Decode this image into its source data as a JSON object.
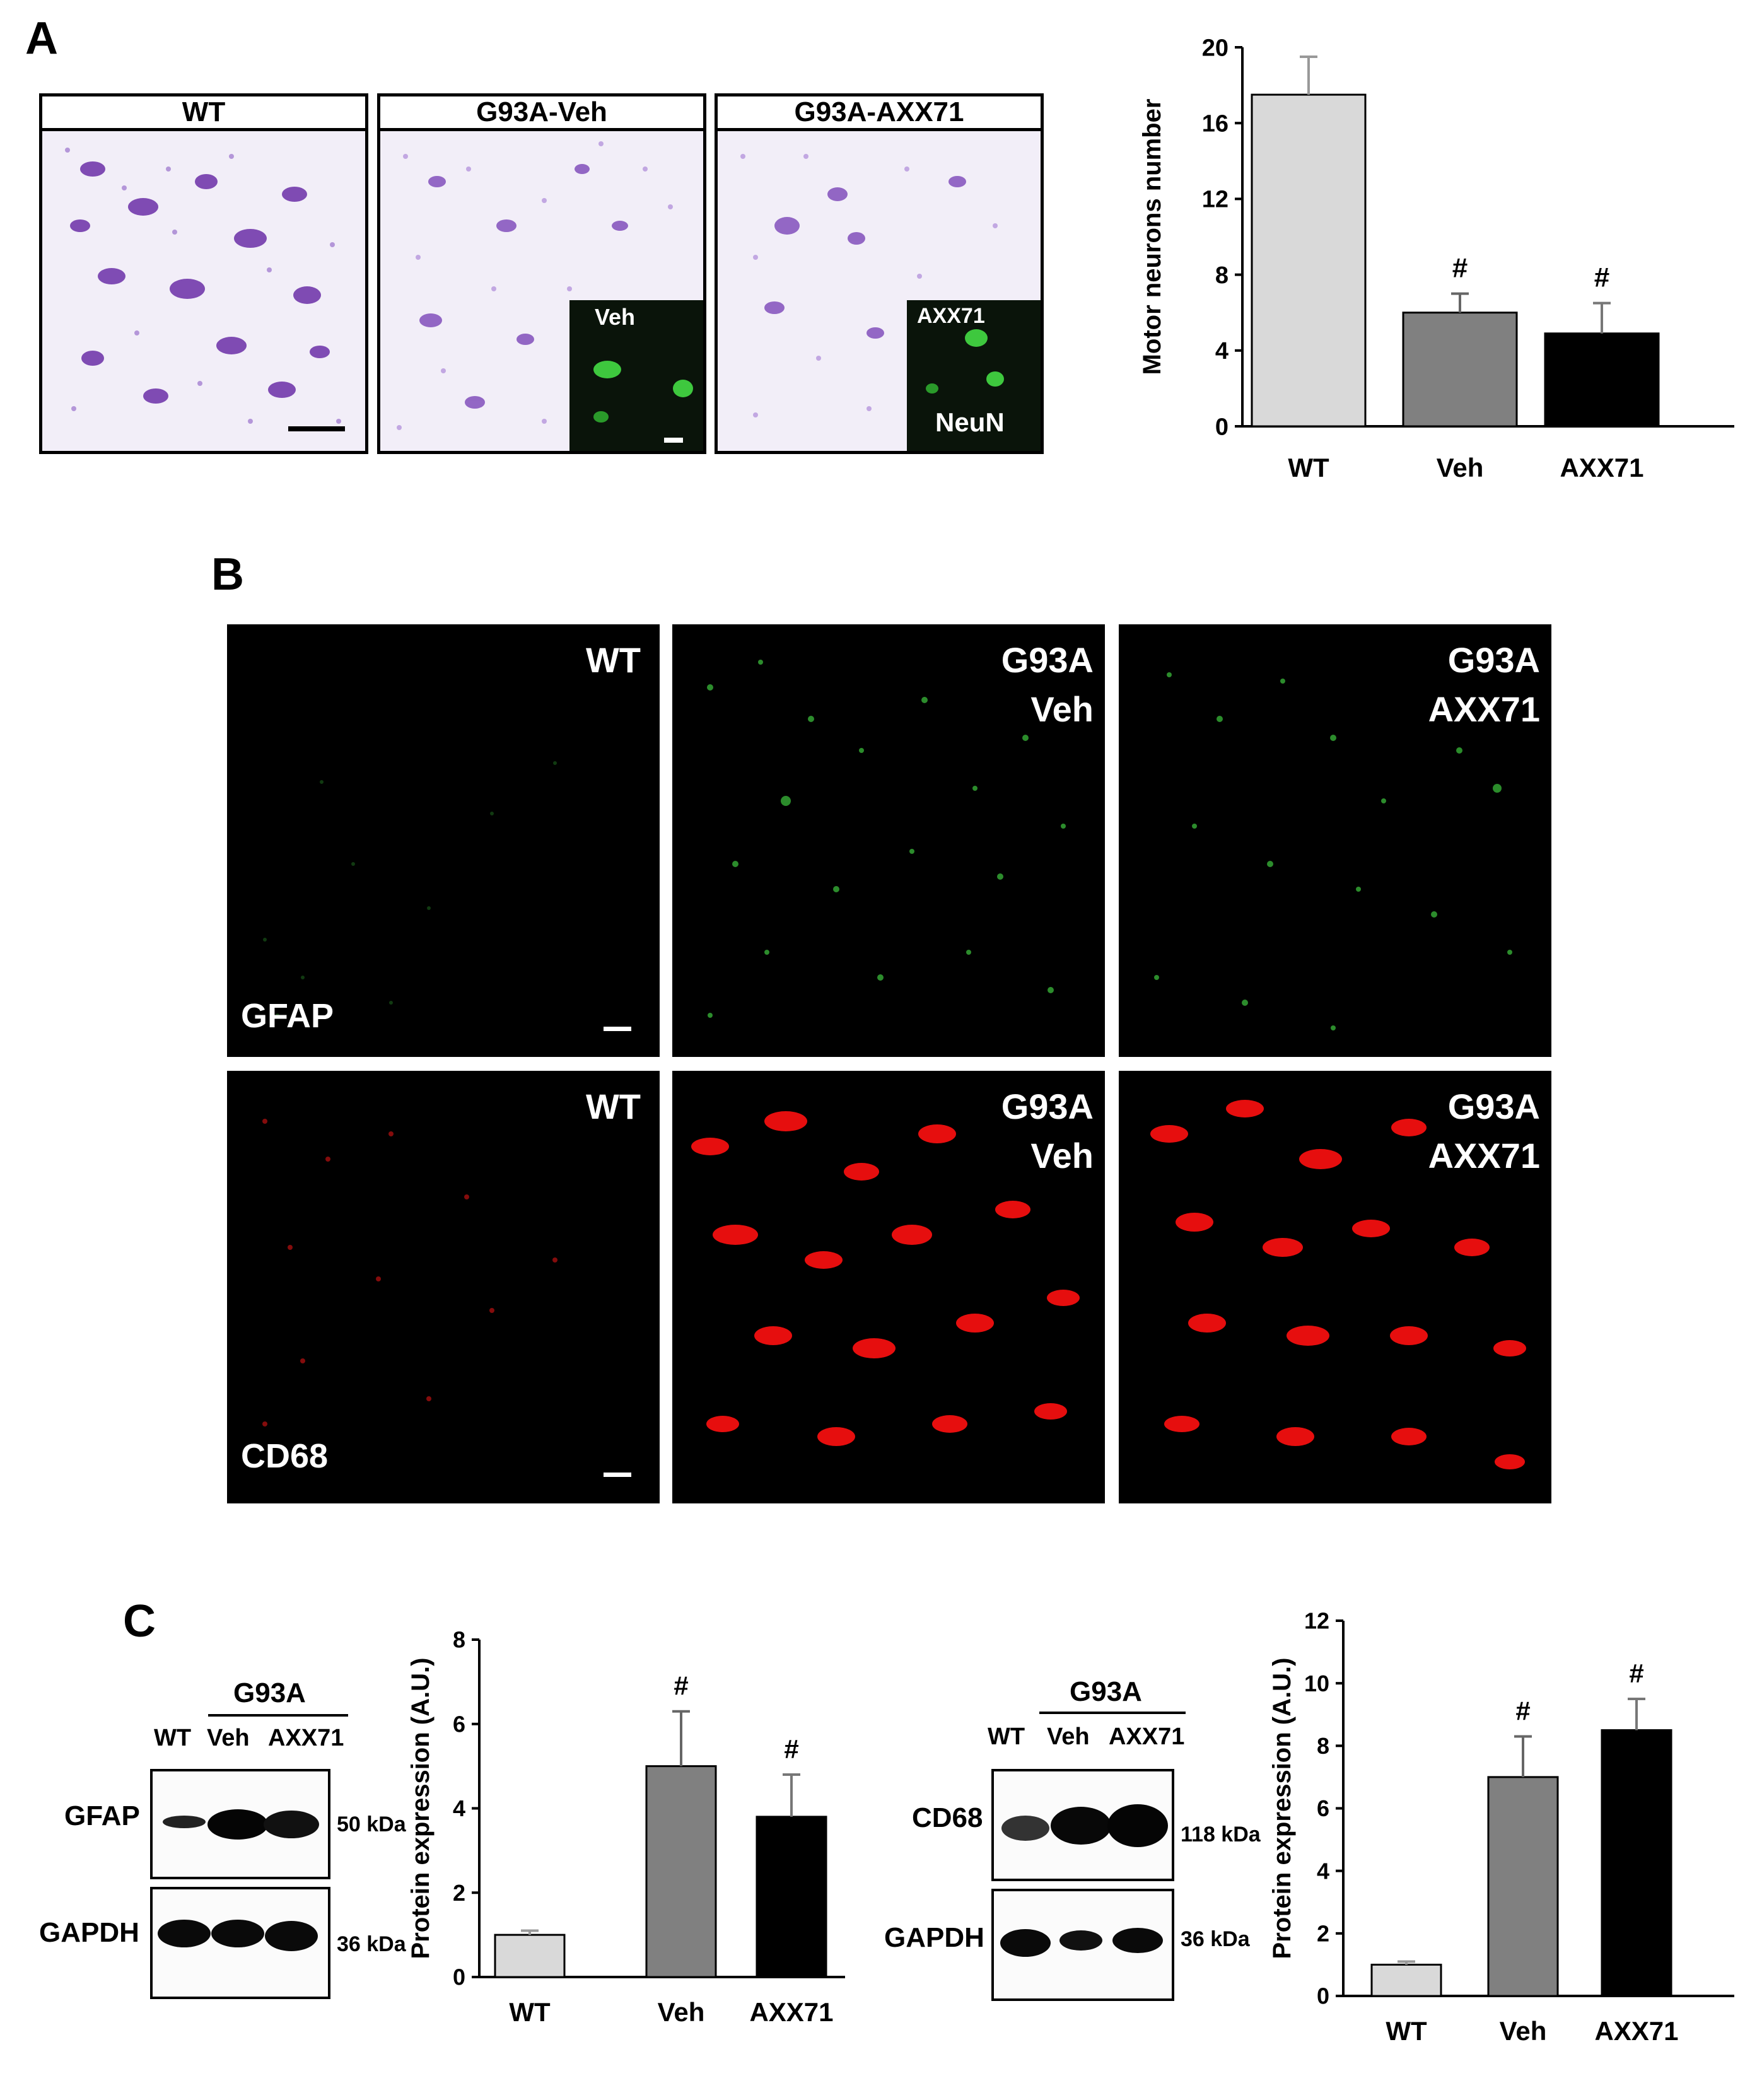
{
  "panels": {
    "a": "A",
    "b": "B",
    "c": "C"
  },
  "panel_a": {
    "images": [
      {
        "title": "WT"
      },
      {
        "title": "G93A-Veh",
        "inset_label": "Veh"
      },
      {
        "title": "G93A-AXX71",
        "inset_label": "AXX71",
        "marker": "NeuN"
      }
    ]
  },
  "panel_b": {
    "gfap_marker": "GFAP",
    "cd68_marker": "CD68",
    "labels": {
      "wt": "WT",
      "veh_l1": "G93A",
      "veh_l2": "Veh",
      "axx_l1": "G93A",
      "axx_l2": "AXX71"
    }
  },
  "panel_c": {
    "gfap_blot": {
      "group_label": "G93A",
      "lanes": [
        "WT",
        "Veh",
        "AXX71"
      ],
      "target": "GFAP",
      "target_kda": "50 kDa",
      "control": "GAPDH",
      "control_kda": "36 kDa"
    },
    "cd68_blot": {
      "group_label": "G93A",
      "lanes": [
        "WT",
        "Veh",
        "AXX71"
      ],
      "target": "CD68",
      "target_kda": "118 kDa",
      "control": "GAPDH",
      "control_kda": "36 kDa"
    }
  },
  "colors": {
    "wt_bar": "#d9d9d9",
    "veh_bar": "#808080",
    "axx_bar": "#000000",
    "gfap_green": "#3ec83e",
    "cd68_red": "#ff1010",
    "nissl_purple": "#6b2fa8"
  },
  "chart_data": [
    {
      "type": "bar",
      "categories": [
        "WT",
        "Veh",
        "AXX71"
      ],
      "values": [
        17.5,
        6.0,
        4.9
      ],
      "errors": [
        2.0,
        1.0,
        1.6
      ],
      "annotations": [
        "",
        "#",
        "#"
      ],
      "ylabel": "Motor neurons number",
      "yticks": [
        0,
        4,
        8,
        12,
        16,
        20
      ],
      "ylim": [
        0,
        20
      ],
      "grid": false
    },
    {
      "type": "bar",
      "categories": [
        "WT",
        "Veh",
        "AXX71"
      ],
      "values": [
        1.0,
        5.0,
        3.8
      ],
      "errors": [
        0.1,
        1.3,
        1.0
      ],
      "annotations": [
        "",
        "#",
        "#"
      ],
      "ylabel": "Protein expression (A.U.)",
      "yticks": [
        0,
        2,
        4,
        6,
        8
      ],
      "ylim": [
        0,
        8
      ],
      "grid": false
    },
    {
      "type": "bar",
      "categories": [
        "WT",
        "Veh",
        "AXX71"
      ],
      "values": [
        1.0,
        7.0,
        8.5
      ],
      "errors": [
        0.1,
        1.3,
        1.0
      ],
      "annotations": [
        "",
        "#",
        "#"
      ],
      "ylabel": "Protein expression (A.U.)",
      "yticks": [
        0,
        2,
        4,
        6,
        8,
        10,
        12
      ],
      "ylim": [
        0,
        12
      ],
      "grid": false
    }
  ]
}
